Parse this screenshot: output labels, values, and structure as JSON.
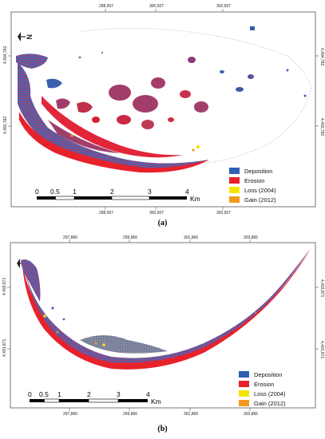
{
  "maps": [
    {
      "id": "a",
      "caption": "(a)",
      "top_coords": [
        "298,507",
        "300,507",
        "302,507"
      ],
      "bottom_coords": [
        "298,507",
        "300,507",
        "302,507"
      ],
      "left_coords": [
        "4,494,782",
        "4,492,782"
      ],
      "right_coords": [
        "4,494,782",
        "4,492,782"
      ],
      "north": "N",
      "scale": {
        "labels": [
          "0",
          "0.5",
          "1",
          "2",
          "3",
          "4"
        ],
        "unit": "Km"
      },
      "legend": [
        {
          "label": "Deposition",
          "color": "#2f5fb3"
        },
        {
          "label": "Erosion",
          "color": "#e8212b"
        },
        {
          "label": "Loss (2004)",
          "color": "#f2e600"
        },
        {
          "label": "Gain (2012)",
          "color": "#f39a1e"
        }
      ]
    },
    {
      "id": "b",
      "caption": "(b)",
      "top_coords": [
        "297,866",
        "299,866",
        "301,866",
        "303,866"
      ],
      "bottom_coords": [
        "297,866",
        "299,866",
        "301,866",
        "303,866"
      ],
      "left_coords": [
        "4,493,871",
        "4,491,871"
      ],
      "right_coords": [
        "4,493,871",
        "4,491,871"
      ],
      "north": "N",
      "scale": {
        "labels": [
          "0",
          "0.5",
          "1",
          "2",
          "3",
          "4"
        ],
        "unit": "Km"
      },
      "legend": [
        {
          "label": "Deposition",
          "color": "#2f5fb3"
        },
        {
          "label": "Erosion",
          "color": "#e8212b"
        },
        {
          "label": "Loss (2004)",
          "color": "#f2e600"
        },
        {
          "label": "Gain (2012)",
          "color": "#f39a1e"
        }
      ]
    }
  ]
}
